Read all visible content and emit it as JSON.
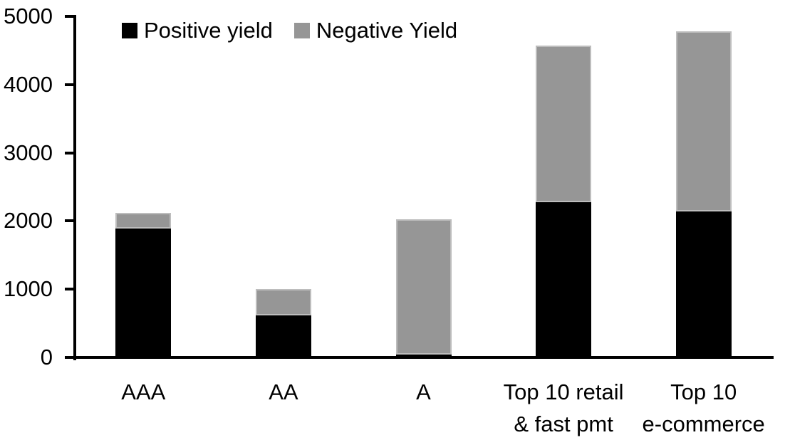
{
  "colors": {
    "background": "#ffffff",
    "axis": "#000000",
    "positive_series": "#000000",
    "negative_series": "#969696",
    "negative_border": "#bdbdbd",
    "text": "#000000"
  },
  "legend": {
    "items": [
      {
        "label": "Positive yield",
        "color": "#000000"
      },
      {
        "label": "Negative Yield",
        "color": "#969696"
      }
    ]
  },
  "chart_data": {
    "type": "bar",
    "stacked": true,
    "title": "",
    "xlabel": "",
    "ylabel": "",
    "categories": [
      "AAA",
      "AA",
      "A",
      "Top 10 retail\n& fast pmt",
      "Top 10\ne-commerce"
    ],
    "series": [
      {
        "name": "Positive yield",
        "color": "#000000",
        "values": [
          1890,
          620,
          40,
          2280,
          2140
        ]
      },
      {
        "name": "Negative Yield",
        "color": "#969696",
        "values": [
          230,
          380,
          1990,
          2290,
          2640
        ]
      }
    ],
    "totals": [
      2120,
      1000,
      2030,
      4570,
      4780
    ],
    "ylim": [
      0,
      5000
    ],
    "yticks": [
      0,
      1000,
      2000,
      3000,
      4000,
      5000
    ],
    "grid": false,
    "legend_position": "top"
  }
}
